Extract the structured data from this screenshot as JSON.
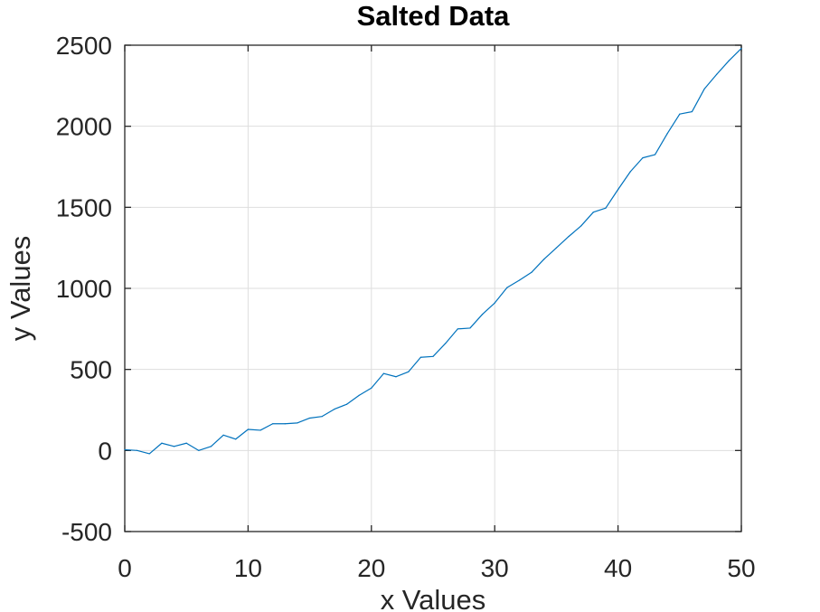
{
  "chart_data": {
    "type": "line",
    "title": "Salted Data",
    "xlabel": "x Values",
    "ylabel": "y Values",
    "xlim": [
      0,
      50
    ],
    "ylim": [
      -500,
      2500
    ],
    "xticks": [
      0,
      10,
      20,
      30,
      40,
      50
    ],
    "yticks": [
      -500,
      0,
      500,
      1000,
      1500,
      2000,
      2500
    ],
    "grid": true,
    "legend": "none",
    "colors": {
      "series": "#0072bd",
      "axis": "#262626",
      "grid": "#dedede"
    },
    "series": [
      {
        "x": [
          0,
          1,
          2,
          3,
          4,
          5,
          6,
          7,
          8,
          9,
          10,
          11,
          12,
          13,
          14,
          15,
          16,
          17,
          18,
          19,
          20,
          21,
          22,
          23,
          24,
          25,
          26,
          27,
          28,
          29,
          30,
          31,
          32,
          33,
          34,
          35,
          36,
          37,
          38,
          39,
          40,
          41,
          42,
          43,
          44,
          45,
          46,
          47,
          48,
          49,
          50
        ],
        "y": [
          5,
          0,
          -20,
          45,
          25,
          45,
          0,
          25,
          95,
          70,
          130,
          125,
          165,
          165,
          170,
          200,
          210,
          255,
          285,
          340,
          385,
          475,
          455,
          485,
          575,
          580,
          660,
          750,
          755,
          840,
          910,
          1005,
          1050,
          1100,
          1180,
          1250,
          1320,
          1385,
          1470,
          1495,
          1610,
          1720,
          1805,
          1825,
          1955,
          2075,
          2090,
          2230,
          2320,
          2405,
          2480
        ]
      }
    ]
  }
}
